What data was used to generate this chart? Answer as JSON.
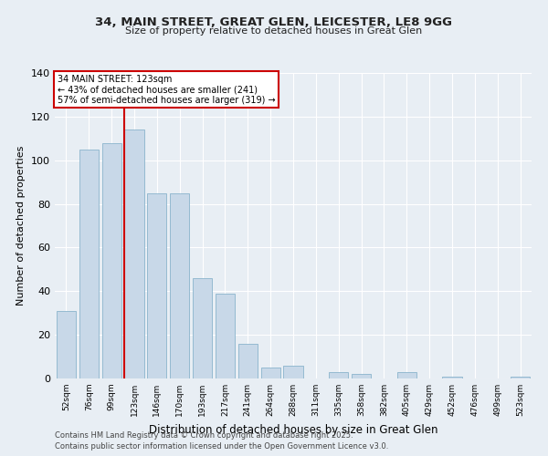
{
  "title1": "34, MAIN STREET, GREAT GLEN, LEICESTER, LE8 9GG",
  "title2": "Size of property relative to detached houses in Great Glen",
  "xlabel": "Distribution of detached houses by size in Great Glen",
  "ylabel": "Number of detached properties",
  "categories": [
    "52sqm",
    "76sqm",
    "99sqm",
    "123sqm",
    "146sqm",
    "170sqm",
    "193sqm",
    "217sqm",
    "241sqm",
    "264sqm",
    "288sqm",
    "311sqm",
    "335sqm",
    "358sqm",
    "382sqm",
    "405sqm",
    "429sqm",
    "452sqm",
    "476sqm",
    "499sqm",
    "523sqm"
  ],
  "values": [
    31,
    105,
    108,
    114,
    85,
    85,
    46,
    39,
    16,
    5,
    6,
    0,
    3,
    2,
    0,
    3,
    0,
    1,
    0,
    0,
    1
  ],
  "bar_color": "#c8d8e8",
  "bar_edge_color": "#8ab4cc",
  "background_color": "#e8eef4",
  "grid_color": "#ffffff",
  "red_line_index": 3,
  "annotation_title": "34 MAIN STREET: 123sqm",
  "annotation_line1": "← 43% of detached houses are smaller (241)",
  "annotation_line2": "57% of semi-detached houses are larger (319) →",
  "annotation_box_color": "#ffffff",
  "annotation_box_edge": "#cc0000",
  "red_line_color": "#cc0000",
  "ylim": [
    0,
    140
  ],
  "yticks": [
    0,
    20,
    40,
    60,
    80,
    100,
    120,
    140
  ],
  "footer1": "Contains HM Land Registry data © Crown copyright and database right 2025.",
  "footer2": "Contains public sector information licensed under the Open Government Licence v3.0."
}
